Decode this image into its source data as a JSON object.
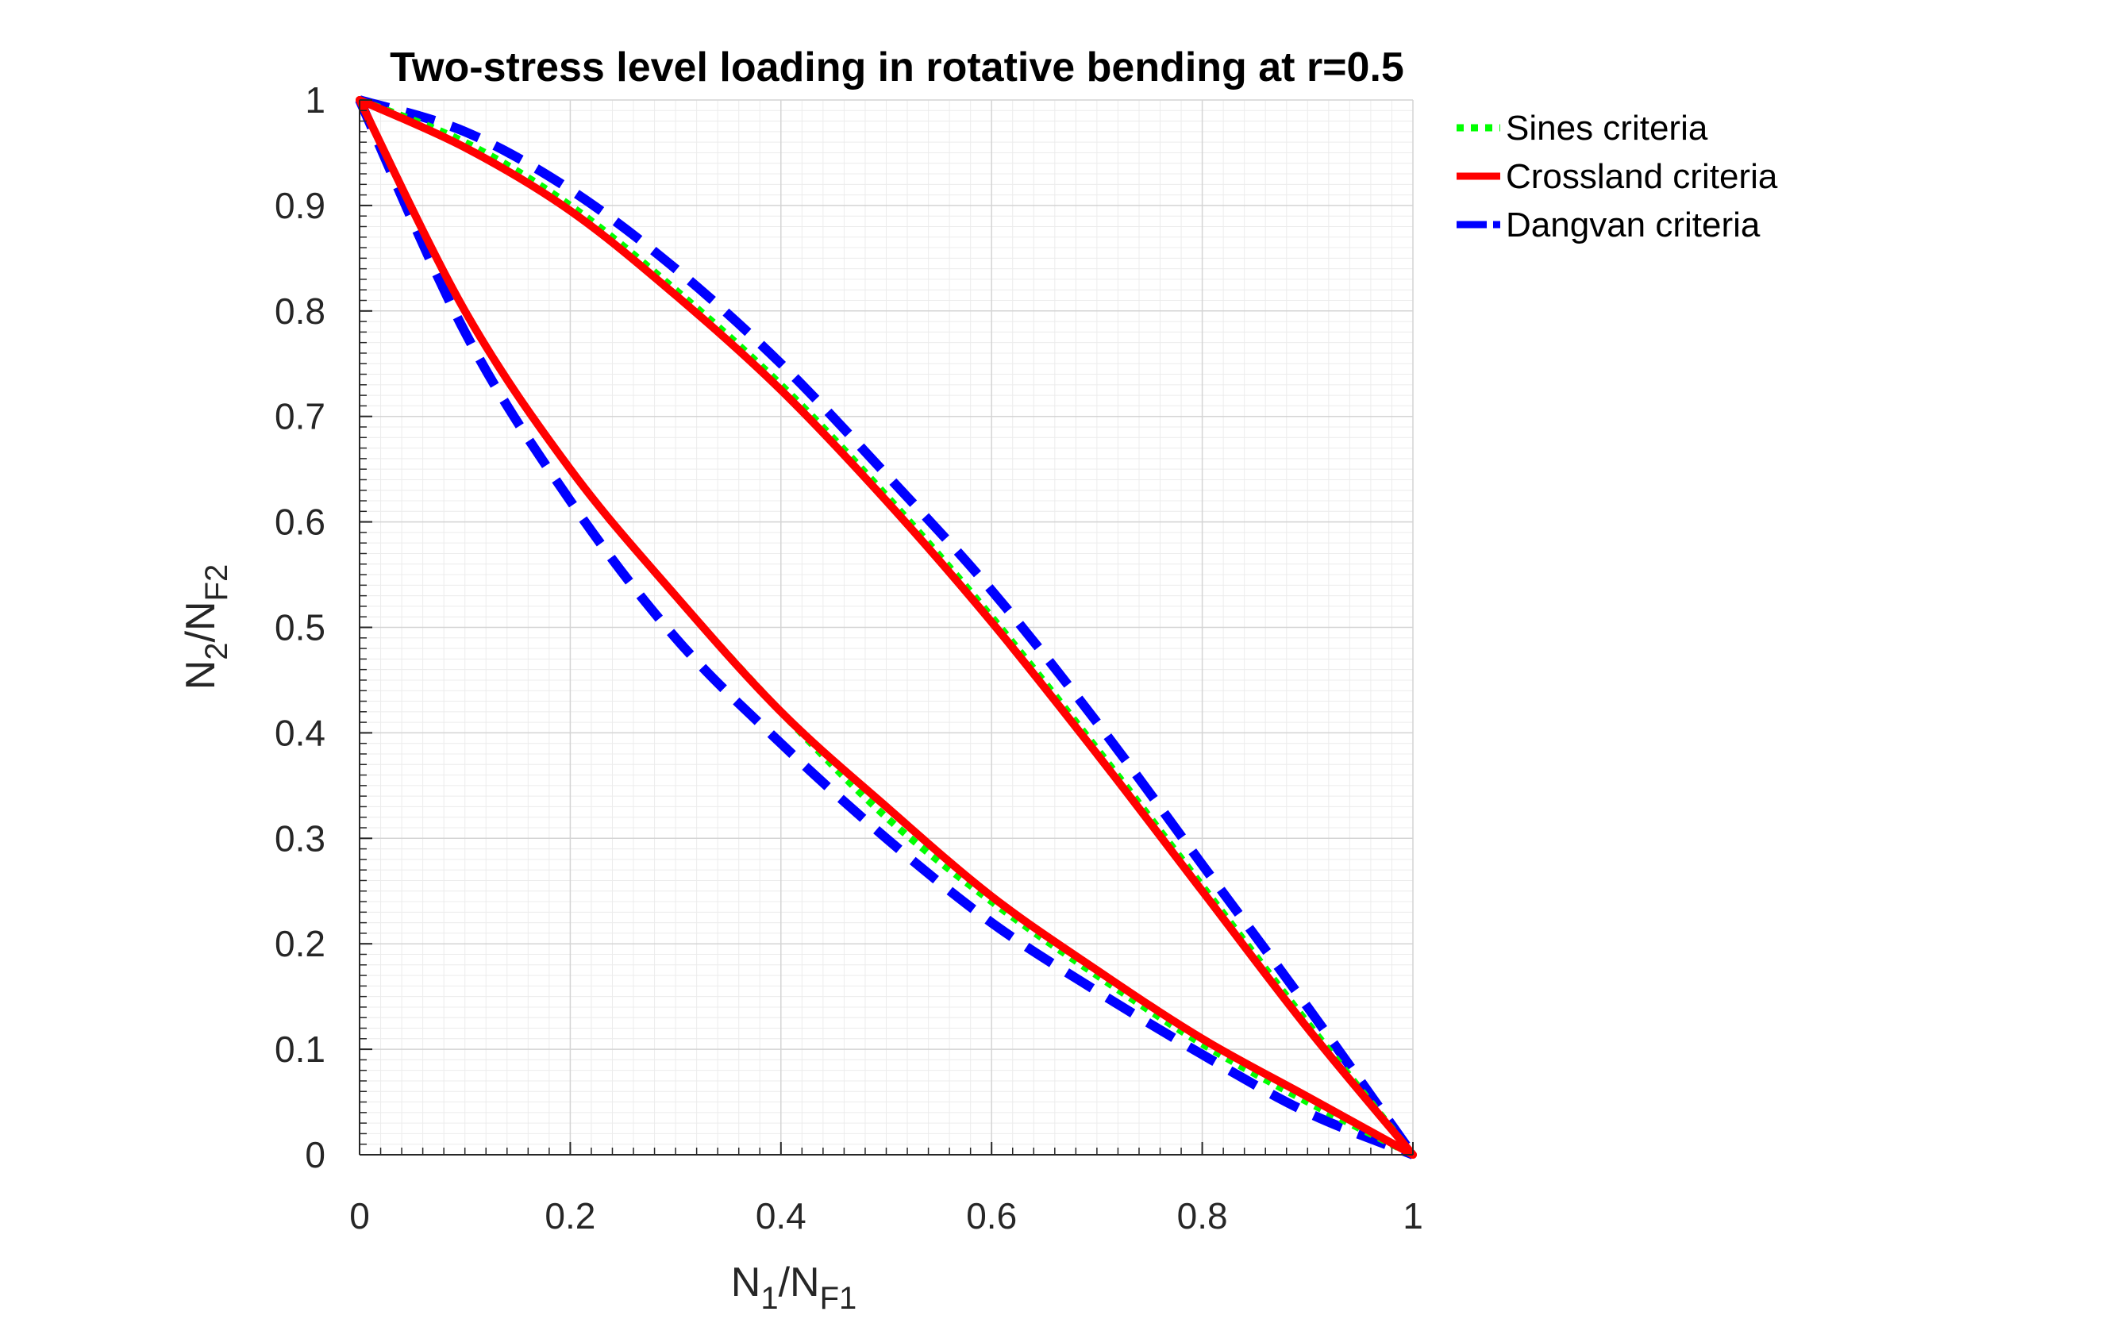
{
  "chart_data": {
    "type": "line",
    "title": "Two-stress level loading in rotative bending at r=0.5",
    "xlabel": {
      "main": "N",
      "sub1": "1",
      "slash": "/N",
      "sub2": "F1"
    },
    "ylabel": {
      "main": "N",
      "sub1": "2",
      "slash": "/N",
      "sub2": "F2"
    },
    "xlim": [
      0,
      1
    ],
    "ylim": [
      0,
      1
    ],
    "xticks": [
      "0",
      "0.2",
      "0.4",
      "0.6",
      "0.8",
      "1"
    ],
    "yticks": [
      "0",
      "0.1",
      "0.2",
      "0.3",
      "0.4",
      "0.5",
      "0.6",
      "0.7",
      "0.8",
      "0.9",
      "1"
    ],
    "grid": true,
    "minor_grid": true,
    "legend_position": "top-right outside",
    "series": [
      {
        "name": "Sines criteria",
        "color": "#00ff00",
        "style": "dotted",
        "upper": {
          "x": [
            0,
            0.1,
            0.2,
            0.3,
            0.4,
            0.5,
            0.6,
            0.7,
            0.8,
            0.9,
            1.0
          ],
          "y": [
            1.0,
            0.96,
            0.9,
            0.82,
            0.73,
            0.625,
            0.51,
            0.385,
            0.255,
            0.125,
            0.0
          ]
        },
        "lower": {
          "x": [
            0,
            0.1,
            0.2,
            0.3,
            0.4,
            0.5,
            0.6,
            0.7,
            0.8,
            0.9,
            1.0
          ],
          "y": [
            1.0,
            0.8,
            0.65,
            0.53,
            0.42,
            0.32,
            0.24,
            0.17,
            0.105,
            0.05,
            0.0
          ]
        }
      },
      {
        "name": "Crossland criteria",
        "color": "#ff0000",
        "style": "solid",
        "upper": {
          "x": [
            0,
            0.1,
            0.2,
            0.3,
            0.4,
            0.5,
            0.6,
            0.7,
            0.8,
            0.9,
            1.0
          ],
          "y": [
            1.0,
            0.955,
            0.895,
            0.815,
            0.725,
            0.62,
            0.505,
            0.38,
            0.25,
            0.12,
            0.0
          ]
        },
        "lower": {
          "x": [
            0,
            0.1,
            0.2,
            0.3,
            0.4,
            0.5,
            0.6,
            0.7,
            0.8,
            0.9,
            1.0
          ],
          "y": [
            1.0,
            0.8,
            0.65,
            0.53,
            0.42,
            0.33,
            0.245,
            0.175,
            0.11,
            0.055,
            0.0
          ]
        }
      },
      {
        "name": "Dangvan criteria",
        "color": "#0000ff",
        "style": "dashed",
        "upper": {
          "x": [
            0,
            0.1,
            0.2,
            0.3,
            0.4,
            0.5,
            0.6,
            0.7,
            0.8,
            0.9,
            1.0
          ],
          "y": [
            1.0,
            0.97,
            0.915,
            0.84,
            0.75,
            0.645,
            0.535,
            0.41,
            0.275,
            0.14,
            0.0
          ]
        },
        "lower": {
          "x": [
            0,
            0.1,
            0.2,
            0.3,
            0.4,
            0.5,
            0.6,
            0.7,
            0.8,
            0.9,
            1.0
          ],
          "y": [
            1.0,
            0.78,
            0.62,
            0.49,
            0.39,
            0.3,
            0.22,
            0.155,
            0.095,
            0.04,
            0.0
          ]
        }
      }
    ]
  }
}
